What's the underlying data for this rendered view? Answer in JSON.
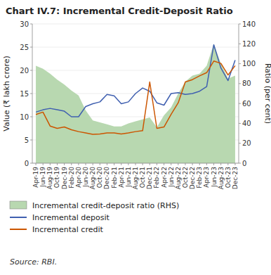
{
  "chart_data": {
    "type": "line",
    "title": "Chart IV.7: Incremental Credit-Deposit Ratio",
    "ylabel": "Value (₹ lakh crore)",
    "y2label": "Ratio (per cent)",
    "annotations": [
      "Source: RBI."
    ],
    "categories": [
      "Apr-19",
      "Jun-19",
      "Aug-19",
      "Oct-19",
      "Dec-19",
      "Feb-20",
      "Apr-20",
      "Jun-20",
      "Aug-20",
      "Oct-20",
      "Dec-20",
      "Feb-21",
      "Apr-21",
      "Jun-21",
      "Aug-21",
      "Oct-21",
      "Dec-21",
      "Feb-22",
      "Apr-22",
      "Jun-22",
      "Aug-22",
      "Oct-22",
      "Dec-22",
      "Feb-23",
      "Apr-23",
      "Jun-23",
      "Aug-23",
      "Oct-23",
      "Dec-23"
    ],
    "series": [
      {
        "name": "Incremental credit-deposit ratio (RHS)",
        "type": "area",
        "axis": "y2",
        "color": "#b8d8b0",
        "values": [
          98,
          95,
          90,
          84,
          79,
          73,
          68,
          53,
          43,
          41,
          39,
          37,
          37,
          40,
          42,
          44,
          46,
          36,
          48,
          56,
          70,
          82,
          88,
          90,
          98,
          120,
          100,
          85,
          88
        ]
      },
      {
        "name": "Incremental deposit",
        "type": "line",
        "color": "#4060b0",
        "values": [
          11.0,
          11.5,
          11.8,
          11.5,
          11.2,
          10.0,
          10.0,
          12.2,
          12.8,
          13.2,
          14.8,
          14.5,
          12.8,
          13.2,
          15.0,
          16.2,
          15.5,
          13.0,
          12.5,
          15.0,
          15.2,
          14.8,
          15.0,
          15.5,
          16.5,
          25.5,
          20.5,
          17.8,
          22.2
        ]
      },
      {
        "name": "Incremental credit",
        "type": "line",
        "color": "#cc5500",
        "values": [
          10.5,
          11.0,
          8.0,
          7.5,
          7.8,
          7.2,
          6.8,
          6.5,
          6.2,
          6.3,
          6.5,
          6.5,
          6.3,
          6.5,
          6.8,
          7.0,
          17.5,
          7.5,
          7.8,
          10.5,
          13.0,
          17.5,
          18.0,
          18.8,
          19.5,
          22.0,
          21.5,
          19.0,
          21.0
        ]
      }
    ],
    "ylim": [
      0,
      30
    ],
    "yticks": [
      0,
      5,
      10,
      15,
      20,
      25,
      30
    ],
    "y2lim": [
      0,
      140
    ],
    "y2ticks": [
      0,
      20,
      40,
      60,
      80,
      100,
      120,
      140
    ],
    "grid": true,
    "legend": "bottom"
  }
}
